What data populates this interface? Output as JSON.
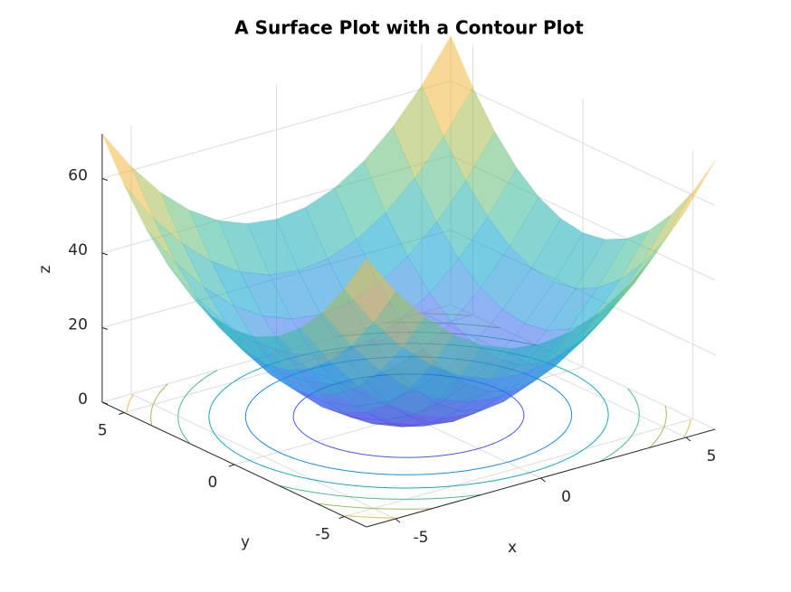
{
  "chart_data": {
    "type": "surface",
    "title": "A Surface Plot with a Contour Plot",
    "x_label": "x",
    "y_label": "y",
    "z_label": "z",
    "x": [
      -6,
      -5,
      -4,
      -3,
      -2,
      -1,
      0,
      1,
      2,
      3,
      4,
      5,
      6
    ],
    "y": [
      -6,
      -5,
      -4,
      -3,
      -2,
      -1,
      0,
      1,
      2,
      3,
      4,
      5,
      6
    ],
    "z": [
      [
        72,
        61,
        52,
        45,
        40,
        37,
        36,
        37,
        40,
        45,
        52,
        61,
        72
      ],
      [
        61,
        50,
        41,
        34,
        29,
        26,
        25,
        26,
        29,
        34,
        41,
        50,
        61
      ],
      [
        52,
        41,
        32,
        25,
        20,
        17,
        16,
        17,
        20,
        25,
        32,
        41,
        52
      ],
      [
        45,
        34,
        25,
        18,
        13,
        10,
        9,
        10,
        13,
        18,
        25,
        34,
        45
      ],
      [
        40,
        29,
        20,
        13,
        8,
        5,
        4,
        5,
        8,
        13,
        20,
        29,
        40
      ],
      [
        37,
        26,
        17,
        10,
        5,
        2,
        1,
        2,
        5,
        10,
        17,
        26,
        37
      ],
      [
        36,
        25,
        16,
        9,
        4,
        1,
        0,
        1,
        4,
        9,
        16,
        25,
        36
      ],
      [
        37,
        26,
        17,
        10,
        5,
        2,
        1,
        2,
        5,
        10,
        17,
        26,
        37
      ],
      [
        40,
        29,
        20,
        13,
        8,
        5,
        4,
        5,
        8,
        13,
        20,
        29,
        40
      ],
      [
        45,
        34,
        25,
        18,
        13,
        10,
        9,
        10,
        13,
        18,
        25,
        34,
        45
      ],
      [
        52,
        41,
        32,
        25,
        20,
        17,
        16,
        17,
        20,
        25,
        32,
        41,
        52
      ],
      [
        61,
        50,
        41,
        34,
        29,
        26,
        25,
        26,
        29,
        34,
        41,
        50,
        61
      ],
      [
        72,
        61,
        52,
        45,
        40,
        37,
        36,
        37,
        40,
        45,
        52,
        61,
        72
      ]
    ],
    "xlim": [
      -6,
      6
    ],
    "ylim": [
      -6,
      6
    ],
    "zlim": [
      0,
      72
    ],
    "xticks": [
      -5,
      0,
      5
    ],
    "yticks": [
      -5,
      0,
      5
    ],
    "zticks": [
      0,
      20,
      40,
      60
    ],
    "contour_levels": [
      10,
      20,
      30,
      40,
      50,
      60,
      70
    ],
    "colormap": "parula",
    "clim": [
      0,
      72
    ],
    "surface_alpha": 0.55,
    "grid": true
  }
}
